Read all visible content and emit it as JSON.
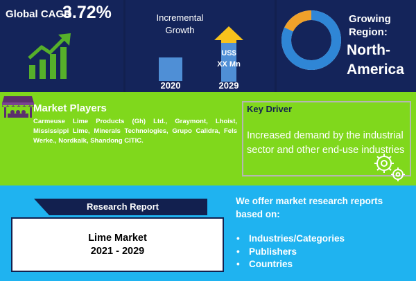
{
  "cagr": {
    "label": "Global CAGR",
    "value": "3.72%"
  },
  "growth": {
    "title_line1": "Incremental",
    "title_line2": "Growth",
    "start_year": "2020",
    "end_year": "2029",
    "value_line1": "US$",
    "value_line2": "XX Mn",
    "bar_color": "#4f8fd6",
    "arrow_color": "#f7c21c"
  },
  "region": {
    "label_line1": "Growing",
    "label_line2": "Region:",
    "value_line1": "North-",
    "value_line2": "America"
  },
  "market_players": {
    "title": "Market Players",
    "text": "Carmeuse Lime Products (Gh) Ltd., Graymont, Lhoist, Mississippi Lime, Minerals Technologies, Grupo Calidra, Fels Werke., Nordkalk, Shandong CITIC."
  },
  "key_driver": {
    "title": "Key Driver",
    "text": "Increased demand by the industrial sector and other end-use industries"
  },
  "research_report": {
    "label": "Research Report",
    "title_line1": "Lime Market",
    "title_line2": "2021 - 2029"
  },
  "offer": {
    "text": "We offer market research reports based on:",
    "items": [
      "Industries/Categories",
      "Publishers",
      "Countries"
    ]
  },
  "colors": {
    "navy": "#12204f",
    "green": "#80d81c",
    "sky": "#1fb3f0",
    "accent_green": "#56b02a"
  },
  "icons": {
    "growth": "bar-growth-arrow-icon",
    "donut": "donut-ring-icon",
    "players": "market-shop-icon",
    "driver": "gears-icon"
  }
}
